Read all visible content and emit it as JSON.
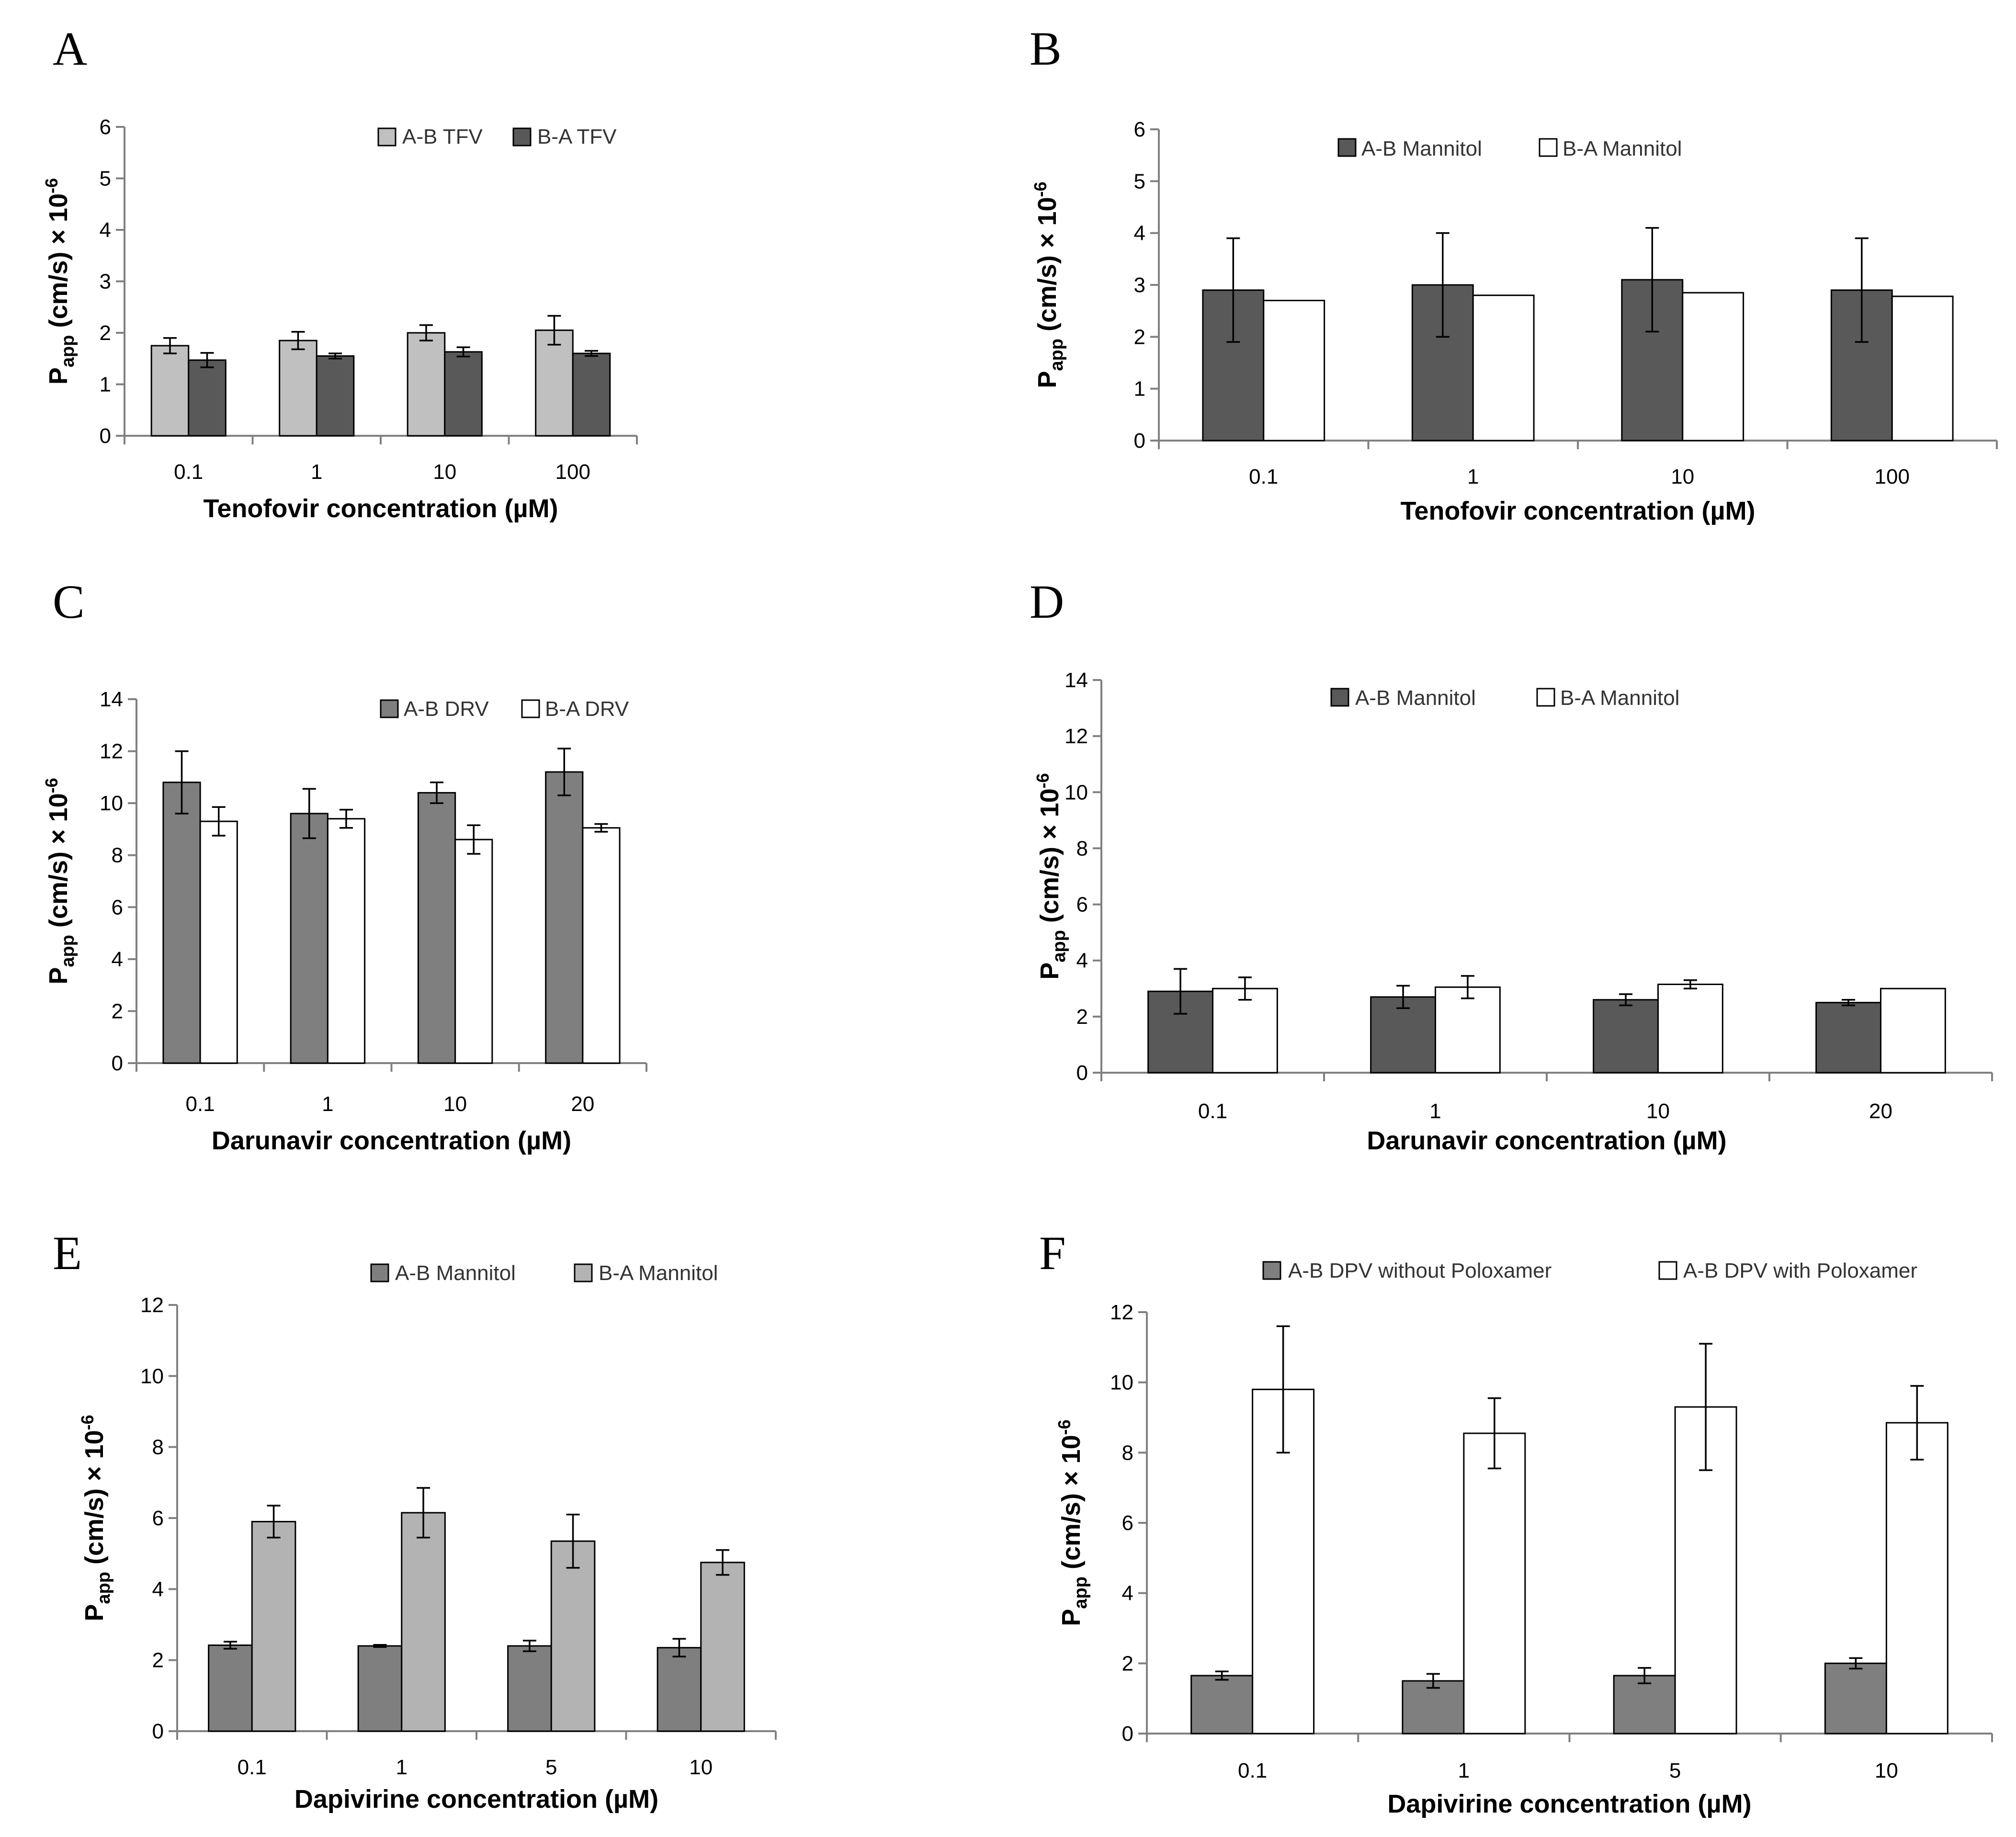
{
  "chart_data": [
    {
      "panel": "A",
      "type": "bar",
      "categories": [
        "0.1",
        "1",
        "10",
        "100"
      ],
      "series": [
        {
          "name": "A-B TFV",
          "color": "#c0c0c0",
          "values": [
            1.75,
            1.85,
            2.0,
            2.05
          ],
          "errors": [
            0.15,
            0.17,
            0.15,
            0.28
          ]
        },
        {
          "name": "B-A TFV",
          "color": "#595959",
          "values": [
            1.47,
            1.55,
            1.63,
            1.6
          ],
          "errors": [
            0.14,
            0.05,
            0.09,
            0.05
          ]
        }
      ],
      "xlabel": "Tenofovir concentration (µM)",
      "ylabel_main": "P",
      "ylabel_sub": "app",
      "ylabel_rest": " (cm/s) × 10",
      "ylabel_sup": "-6",
      "ylim": [
        0,
        6
      ],
      "yticks": [
        "0",
        "1",
        "2",
        "3",
        "4",
        "5",
        "6"
      ],
      "legend": "top"
    },
    {
      "panel": "B",
      "type": "bar",
      "categories": [
        "0.1",
        "1",
        "10",
        "100"
      ],
      "series": [
        {
          "name": "A-B Mannitol",
          "color": "#595959",
          "values": [
            2.9,
            3.0,
            3.1,
            2.9
          ],
          "errors": [
            1.0,
            1.0,
            1.0,
            1.0
          ]
        },
        {
          "name": "B-A Mannitol",
          "color": "#ffffff",
          "values": [
            2.7,
            2.8,
            2.85,
            2.78
          ],
          "errors": [
            0,
            0,
            0,
            0
          ]
        }
      ],
      "xlabel": "Tenofovir concentration (µM)",
      "ylabel_main": "P",
      "ylabel_sub": "app",
      "ylabel_rest": " (cm/s) × 10",
      "ylabel_sup": "-6",
      "ylim": [
        0,
        6
      ],
      "yticks": [
        "0",
        "1",
        "2",
        "3",
        "4",
        "5",
        "6"
      ],
      "legend": "top"
    },
    {
      "panel": "C",
      "type": "bar",
      "categories": [
        "0.1",
        "1",
        "10",
        "20"
      ],
      "series": [
        {
          "name": "A-B DRV",
          "color": "#7f7f7f",
          "values": [
            10.8,
            9.6,
            10.4,
            11.2
          ],
          "errors": [
            1.2,
            0.95,
            0.4,
            0.9
          ]
        },
        {
          "name": "B-A DRV",
          "color": "#ffffff",
          "values": [
            9.3,
            9.4,
            8.6,
            9.05
          ],
          "errors": [
            0.55,
            0.35,
            0.55,
            0.15
          ]
        }
      ],
      "xlabel": "Darunavir concentration (µM)",
      "ylabel_main": "P",
      "ylabel_sub": "app",
      "ylabel_rest": " (cm/s) × 10",
      "ylabel_sup": "-6",
      "ylim": [
        0,
        14
      ],
      "yticks": [
        "0",
        "2",
        "4",
        "6",
        "8",
        "10",
        "12",
        "14"
      ],
      "legend": "top"
    },
    {
      "panel": "D",
      "type": "bar",
      "categories": [
        "0.1",
        "1",
        "10",
        "20"
      ],
      "series": [
        {
          "name": "A-B Mannitol",
          "color": "#595959",
          "values": [
            2.9,
            2.7,
            2.6,
            2.5
          ],
          "errors": [
            0.8,
            0.4,
            0.2,
            0.1
          ]
        },
        {
          "name": "B-A Mannitol",
          "color": "#ffffff",
          "values": [
            3.0,
            3.05,
            3.15,
            3.0
          ],
          "errors": [
            0.4,
            0.4,
            0.15,
            0
          ]
        }
      ],
      "xlabel": "Darunavir concentration (µM)",
      "ylabel_main": "P",
      "ylabel_sub": "app",
      "ylabel_rest": " (cm/s) × 10",
      "ylabel_sup": "-6",
      "ylim": [
        0,
        14
      ],
      "yticks": [
        "0",
        "2",
        "4",
        "6",
        "8",
        "10",
        "12",
        "14"
      ],
      "legend": "top"
    },
    {
      "panel": "E",
      "type": "bar",
      "categories": [
        "0.1",
        "1",
        "5",
        "10"
      ],
      "series": [
        {
          "name": "A-B Mannitol",
          "color": "#7f7f7f",
          "values": [
            2.42,
            2.4,
            2.4,
            2.35
          ],
          "errors": [
            0.1,
            0.03,
            0.15,
            0.25
          ]
        },
        {
          "name": "B-A Mannitol",
          "color": "#b3b3b3",
          "values": [
            5.9,
            6.15,
            5.35,
            4.75
          ],
          "errors": [
            0.45,
            0.7,
            0.75,
            0.35
          ]
        }
      ],
      "xlabel": "Dapivirine concentration (µM)",
      "ylabel_main": "P",
      "ylabel_sub": "app",
      "ylabel_rest": " (cm/s) × 10",
      "ylabel_sup": "-6",
      "ylim": [
        0,
        12
      ],
      "yticks": [
        "0",
        "2",
        "4",
        "6",
        "8",
        "10",
        "12"
      ],
      "legend": "top"
    },
    {
      "panel": "F",
      "type": "bar",
      "categories": [
        "0.1",
        "1",
        "5",
        "10"
      ],
      "series": [
        {
          "name": "A-B DPV without Poloxamer",
          "color": "#7f7f7f",
          "values": [
            1.65,
            1.5,
            1.65,
            2.0
          ],
          "errors": [
            0.12,
            0.2,
            0.22,
            0.15
          ]
        },
        {
          "name": "A-B DPV with Poloxamer",
          "color": "#ffffff",
          "values": [
            9.8,
            8.55,
            9.3,
            8.85
          ],
          "errors": [
            1.8,
            1.0,
            1.8,
            1.05
          ]
        }
      ],
      "xlabel": "Dapivirine concentration (µM)",
      "ylabel_main": "P",
      "ylabel_sub": "app",
      "ylabel_rest": " (cm/s) × 10",
      "ylabel_sup": "-6",
      "ylim": [
        0,
        12
      ],
      "yticks": [
        "0",
        "2",
        "4",
        "6",
        "8",
        "10",
        "12"
      ],
      "legend": "top"
    }
  ]
}
